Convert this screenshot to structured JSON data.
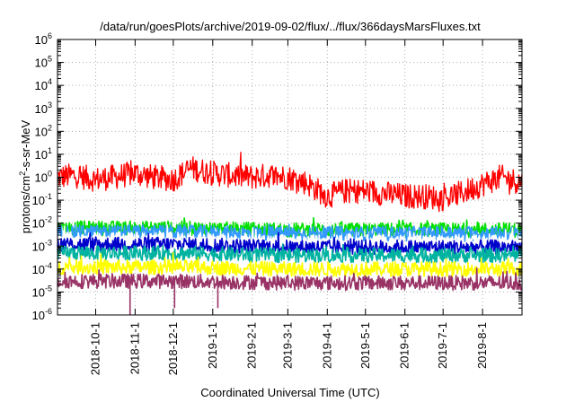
{
  "chart_data": {
    "type": "line",
    "title": "/data/run/goesPlots/archive/2019-09-02/flux/../flux/366daysMarsFluxes.txt",
    "xlabel": "Coordinated Universal Time (UTC)",
    "ylabel": {
      "prefix": "protons/cm",
      "sup": "2",
      "suffix": "-s-sr-MeV"
    },
    "yscale": "log",
    "ylim": [
      1e-06,
      1000000.0
    ],
    "xlim": [
      "2018-09-01",
      "2019-09-01"
    ],
    "grid": true,
    "legend": "none",
    "y_ticks": [
      {
        "value": 1e-06,
        "base": "10",
        "exp": "-6"
      },
      {
        "value": 1e-05,
        "base": "10",
        "exp": "-5"
      },
      {
        "value": 0.0001,
        "base": "10",
        "exp": "-4"
      },
      {
        "value": 0.001,
        "base": "10",
        "exp": "-3"
      },
      {
        "value": 0.01,
        "base": "10",
        "exp": "-2"
      },
      {
        "value": 0.1,
        "base": "10",
        "exp": "-1"
      },
      {
        "value": 1.0,
        "base": "10",
        "exp": "0"
      },
      {
        "value": 10.0,
        "base": "10",
        "exp": "1"
      },
      {
        "value": 100.0,
        "base": "10",
        "exp": "2"
      },
      {
        "value": 1000.0,
        "base": "10",
        "exp": "3"
      },
      {
        "value": 10000.0,
        "base": "10",
        "exp": "4"
      },
      {
        "value": 100000.0,
        "base": "10",
        "exp": "5"
      },
      {
        "value": 1000000.0,
        "base": "10",
        "exp": "6"
      }
    ],
    "x_ticks": [
      {
        "date": "2018-10-01",
        "label": "2018-10-1"
      },
      {
        "date": "2018-11-01",
        "label": "2018-11-1"
      },
      {
        "date": "2018-12-01",
        "label": "2018-12-1"
      },
      {
        "date": "2019-01-01",
        "label": "2019-1-1"
      },
      {
        "date": "2019-02-01",
        "label": "2019-2-1"
      },
      {
        "date": "2019-03-01",
        "label": "2019-3-1"
      },
      {
        "date": "2019-04-01",
        "label": "2019-4-1"
      },
      {
        "date": "2019-05-01",
        "label": "2019-5-1"
      },
      {
        "date": "2019-06-01",
        "label": "2019-6-1"
      },
      {
        "date": "2019-07-01",
        "label": "2019-7-1"
      },
      {
        "date": "2019-08-01",
        "label": "2019-8-1"
      }
    ],
    "series": [
      {
        "color": "#ff0000",
        "x": [
          "2018-09-01",
          "2018-09-15",
          "2018-10-01",
          "2018-10-15",
          "2018-11-01",
          "2018-11-15",
          "2018-12-01",
          "2018-12-15",
          "2019-01-01",
          "2019-01-15",
          "2019-02-01",
          "2019-02-15",
          "2019-03-01",
          "2019-03-15",
          "2019-04-01",
          "2019-04-15",
          "2019-05-01",
          "2019-05-15",
          "2019-06-01",
          "2019-06-15",
          "2019-07-01",
          "2019-07-15",
          "2019-08-01",
          "2019-08-15",
          "2019-09-01"
        ],
        "values": [
          1.0,
          1.2,
          0.8,
          1.0,
          1.5,
          1.0,
          0.8,
          2.5,
          1.5,
          1.2,
          1.0,
          1.2,
          1.0,
          0.6,
          0.15,
          0.25,
          0.25,
          0.2,
          0.15,
          0.15,
          0.12,
          0.2,
          0.5,
          1.0,
          0.6
        ]
      },
      {
        "color": "#00e000",
        "x": [
          "2018-09-01",
          "2018-12-01",
          "2019-03-01",
          "2019-06-01",
          "2019-09-01"
        ],
        "values": [
          0.006,
          0.006,
          0.005,
          0.005,
          0.005
        ]
      },
      {
        "color": "#3399ff",
        "x": [
          "2018-09-01",
          "2018-12-01",
          "2019-03-01",
          "2019-06-01",
          "2019-09-01"
        ],
        "values": [
          0.004,
          0.004,
          0.0035,
          0.0035,
          0.0035
        ]
      },
      {
        "color": "#ffffff",
        "x": [
          "2018-09-01",
          "2018-12-01",
          "2019-03-01",
          "2019-06-01",
          "2019-09-01"
        ],
        "values": [
          0.002,
          0.002,
          0.0015,
          0.0015,
          0.0015
        ]
      },
      {
        "color": "#0000cc",
        "x": [
          "2018-09-01",
          "2018-12-01",
          "2019-03-01",
          "2019-06-01",
          "2019-09-01"
        ],
        "values": [
          0.0012,
          0.0012,
          0.0009,
          0.0009,
          0.0009
        ]
      },
      {
        "color": "#00b3a0",
        "x": [
          "2018-09-01",
          "2018-12-01",
          "2019-03-01",
          "2019-06-01",
          "2019-09-01"
        ],
        "values": [
          0.0005,
          0.0005,
          0.0004,
          0.0004,
          0.0004
        ]
      },
      {
        "color": "#ffff00",
        "x": [
          "2018-09-01",
          "2018-12-01",
          "2019-03-01",
          "2019-06-01",
          "2019-09-01"
        ],
        "values": [
          0.00012,
          0.00012,
          0.0001,
          0.0001,
          0.0001
        ]
      },
      {
        "color": "#993366",
        "x": [
          "2018-09-01",
          "2018-12-01",
          "2019-03-01",
          "2019-06-01",
          "2019-09-01"
        ],
        "values": [
          3e-05,
          3e-05,
          2.5e-05,
          2.5e-05,
          2.5e-05
        ]
      }
    ],
    "dips": [
      {
        "date": "2018-10-28",
        "value": 1e-06
      },
      {
        "date": "2018-12-02",
        "value": 2e-06
      },
      {
        "date": "2019-01-05",
        "value": 2e-06
      }
    ]
  }
}
